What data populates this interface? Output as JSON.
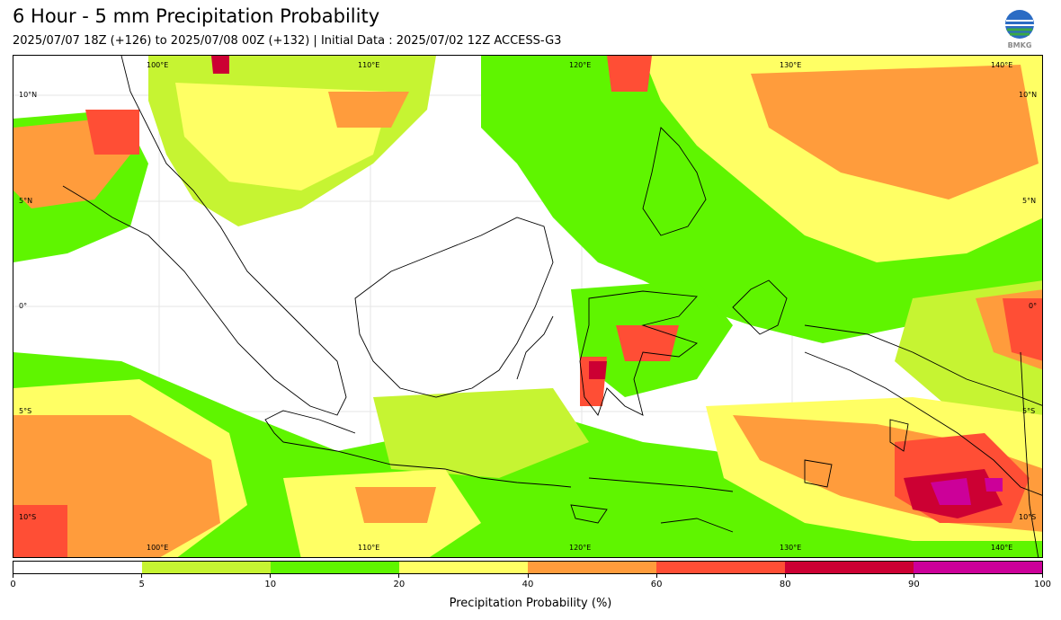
{
  "title": "6 Hour - 5 mm Precipitation Probability",
  "subtitle": "2025/07/07 18Z (+126) to 2025/07/08 00Z (+132) | Initial Data : 2025/07/02 12Z ACCESS-G3",
  "logo": {
    "text": "BMKG",
    "icon": "bmkg-globe-logo"
  },
  "map": {
    "lon_labels": [
      "100°E",
      "110°E",
      "120°E",
      "130°E",
      "140°E"
    ],
    "lat_labels": [
      "10°N",
      "5°N",
      "0°",
      "5°S",
      "10°S"
    ]
  },
  "colorbar": {
    "title": "Precipitation Probability (%)",
    "ticks": [
      "0",
      "5",
      "10",
      "20",
      "40",
      "60",
      "80",
      "90",
      "100"
    ],
    "colors": [
      "#ffffff",
      "#c6f432",
      "#5ff500",
      "#ffff64",
      "#ff9c3c",
      "#ff4e35",
      "#cc0033",
      "#cc0099"
    ]
  }
}
